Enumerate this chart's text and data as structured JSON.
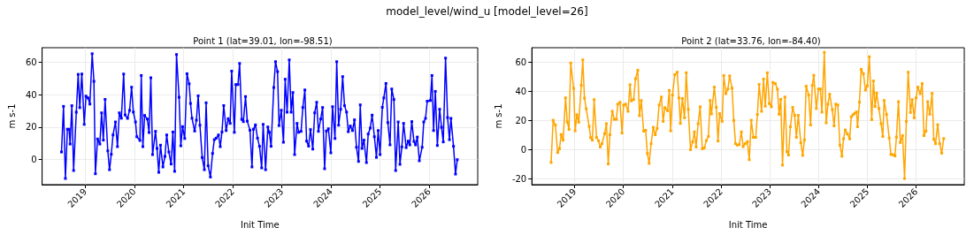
{
  "chart_data": [
    {
      "type": "line",
      "title": "Point 1 (lat=39.01, lon=-98.51)",
      "xlabel": "Init Time",
      "ylabel": "m s-1",
      "annotations": [
        "model_level/wind_u [model_level=26]"
      ],
      "marker": "square",
      "grid": true,
      "xlim": [
        "2018-02-15",
        "2026-12-28"
      ],
      "xticks": [
        "2019",
        "2020",
        "2021",
        "2022",
        "2023",
        "2024",
        "2025",
        "2026"
      ],
      "ylim": [
        -15.4,
        68.9
      ],
      "yticks": [
        0,
        20,
        40,
        60
      ],
      "series": [
        {
          "color": "#0000ff",
          "x": [
            "2018-07-09",
            "2018-07-24",
            "2018-08-07",
            "2018-08-22",
            "2018-09-03",
            "2018-09-11",
            "2018-09-24",
            "2018-10-07",
            "2018-10-27",
            "2018-11-10",
            "2018-11-22",
            "2018-12-07",
            "2018-12-25",
            "2019-01-07",
            "2019-01-22",
            "2019-02-05",
            "2019-02-22",
            "2019-03-07",
            "2019-03-18",
            "2019-04-03",
            "2019-04-20",
            "2019-05-03",
            "2019-05-16",
            "2019-05-29",
            "2019-06-18",
            "2019-07-01",
            "2019-07-14",
            "2019-07-27",
            "2019-08-14",
            "2019-08-29",
            "2019-09-12",
            "2019-09-27",
            "2019-10-14",
            "2019-10-25",
            "2019-11-12",
            "2019-11-27",
            "2019-12-12",
            "2019-12-25",
            "2020-01-10",
            "2020-01-20",
            "2020-02-12",
            "2020-02-22",
            "2020-03-05",
            "2020-03-18",
            "2020-04-07",
            "2020-04-20",
            "2020-05-03",
            "2020-05-16",
            "2020-06-07",
            "2020-06-18",
            "2020-07-01",
            "2020-07-14",
            "2020-08-01",
            "2020-08-16",
            "2020-08-29",
            "2020-09-14",
            "2020-10-01",
            "2020-10-14",
            "2020-10-27",
            "2020-11-10",
            "2020-11-29",
            "2020-12-12",
            "2020-12-25",
            "2021-01-10",
            "2021-01-27",
            "2021-02-12",
            "2021-02-22",
            "2021-03-05",
            "2021-03-25",
            "2021-04-07",
            "2021-04-20",
            "2021-05-03",
            "2021-05-20",
            "2021-06-05",
            "2021-06-18",
            "2021-07-03",
            "2021-07-20",
            "2021-08-05",
            "2021-08-18",
            "2021-09-01",
            "2021-09-18",
            "2021-10-01",
            "2021-10-14",
            "2021-10-27",
            "2021-11-14",
            "2021-11-29",
            "2021-12-14",
            "2021-12-25",
            "2022-01-14",
            "2022-01-25",
            "2022-02-10",
            "2022-02-22",
            "2022-03-10",
            "2022-03-22",
            "2022-04-07",
            "2022-04-20",
            "2022-05-10",
            "2022-05-25",
            "2022-06-05",
            "2022-06-20",
            "2022-07-05",
            "2022-07-20",
            "2022-08-05",
            "2022-08-16",
            "2022-09-03",
            "2022-09-20",
            "2022-10-01",
            "2022-10-14",
            "2022-11-03",
            "2022-11-16",
            "2022-12-01",
            "2022-12-12",
            "2022-12-29",
            "2023-01-14",
            "2023-01-27",
            "2023-02-10",
            "2023-02-26",
            "2023-03-12",
            "2023-03-25",
            "2023-04-07",
            "2023-04-25",
            "2023-05-07",
            "2023-05-25",
            "2023-06-07",
            "2023-06-22",
            "2023-07-05",
            "2023-07-20",
            "2023-08-03",
            "2023-08-20",
            "2023-09-03",
            "2023-09-18",
            "2023-10-01",
            "2023-10-18",
            "2023-11-01",
            "2023-11-16",
            "2023-11-29",
            "2023-12-14",
            "2024-01-01",
            "2024-01-14",
            "2024-02-01",
            "2024-02-14",
            "2024-02-28",
            "2024-03-14",
            "2024-03-29",
            "2024-04-12",
            "2024-04-27",
            "2024-05-10",
            "2024-05-25",
            "2024-06-10",
            "2024-06-25",
            "2024-07-10",
            "2024-07-25",
            "2024-08-07",
            "2024-08-20",
            "2024-09-03",
            "2024-09-22",
            "2024-10-05",
            "2024-10-20",
            "2024-11-03",
            "2024-11-20",
            "2024-12-05",
            "2024-12-18",
            "2025-01-01",
            "2025-01-18",
            "2025-01-29",
            "2025-02-14",
            "2025-02-28",
            "2025-03-16",
            "2025-03-29",
            "2025-04-14",
            "2025-04-27",
            "2025-05-16",
            "2025-05-29",
            "2025-06-12",
            "2025-06-25",
            "2025-07-14",
            "2025-07-29",
            "2025-08-10",
            "2025-08-25",
            "2025-09-10",
            "2025-09-22",
            "2025-10-05",
            "2025-10-20",
            "2025-11-10",
            "2025-11-22",
            "2025-12-05",
            "2025-12-18",
            "2026-01-10",
            "2026-01-22",
            "2026-02-03",
            "2026-02-16",
            "2026-03-03",
            "2026-03-20",
            "2026-04-03",
            "2026-04-16",
            "2026-05-03",
            "2026-05-18",
            "2026-06-01",
            "2026-06-12",
            "2026-07-01",
            "2026-07-16",
            "2026-07-29"
          ],
          "values": [
            4.7,
            32.8,
            -11.6,
            18.7,
            18.7,
            9.6,
            33.2,
            -6.7,
            29.2,
            52.5,
            32,
            52.7,
            21.7,
            39.1,
            38,
            34.2,
            65.2,
            48.2,
            -8.7,
            12.7,
            9.6,
            28.8,
            12,
            37.1,
            5.4,
            -6.2,
            3.3,
            15.2,
            23.2,
            8,
            28.8,
            25.5,
            52.7,
            27.5,
            25.4,
            30.3,
            44.6,
            29.3,
            23.2,
            14.1,
            11.8,
            51.8,
            8,
            27.2,
            25,
            16.7,
            50.4,
            3.1,
            17.4,
            6.9,
            -7.8,
            8.9,
            -4.5,
            2,
            15.2,
            4.7,
            -2.7,
            17,
            -7.2,
            64.7,
            38.4,
            8.5,
            20.3,
            13,
            52.9,
            46.7,
            34.6,
            25.5,
            17.6,
            24.3,
            39.3,
            21.2,
            1.3,
            -6.2,
            35,
            -3.8,
            -10.7,
            3.8,
            12.3,
            13.2,
            15.2,
            8,
            17,
            33.3,
            17.9,
            25.2,
            22.3,
            54.5,
            16.8,
            46.2,
            46.2,
            59.2,
            24.8,
            23.4,
            38.8,
            23.7,
            18.1,
            -4.5,
            18.7,
            21.4,
            13.2,
            8.2,
            -5.1,
            21.7,
            -6.2,
            20.1,
            16.8,
            8.2,
            44.4,
            60.3,
            54.2,
            21,
            30.4,
            10.7,
            49.5,
            29.2,
            61.4,
            29.2,
            41.3,
            3.1,
            22.3,
            16.8,
            17.4,
            32.1,
            42.9,
            11.4,
            8.3,
            18.5,
            6.5,
            28.8,
            35.3,
            17.4,
            25,
            32.1,
            -5.6,
            17.6,
            19,
            4.2,
            32.6,
            13,
            60.3,
            21.2,
            31,
            51.1,
            33.2,
            29.3,
            17.2,
            20.7,
            17.9,
            24.5,
            7.6,
            -1.1,
            33.7,
            6.9,
            12,
            -1.8,
            15.8,
            19.4,
            27.4,
            14.1,
            1.4,
            17.9,
            3.1,
            32.2,
            38,
            46.9,
            22.8,
            9.1,
            43.5,
            37,
            -6.7,
            23.2,
            -2.9,
            7.8,
            22.3,
            7.4,
            11.4,
            9.1,
            23.4,
            11.2,
            9.1,
            13.9,
            -0.7,
            7.6,
            23.2,
            25.4,
            36,
            36.4,
            51.8,
            17.9,
            42,
            8.7,
            31,
            19.9,
            10.9,
            62.5,
            25.9,
            12.3,
            25.4,
            8.2,
            -8.9,
            0
          ]
        }
      ]
    },
    {
      "type": "line",
      "title": "Point 2 (lat=33.76, lon=-84.40)",
      "xlabel": "Init Time",
      "ylabel": "m s-1",
      "marker": "square",
      "grid": true,
      "xlim": [
        "2018-02-15",
        "2026-12-28"
      ],
      "xticks": [
        "2019",
        "2020",
        "2021",
        "2022",
        "2023",
        "2024",
        "2025",
        "2026"
      ],
      "ylim": [
        -23.8,
        70.1
      ],
      "yticks": [
        -20,
        0,
        20,
        40,
        60
      ],
      "series": [
        {
          "color": "#ffa500",
          "x": [
            "2018-07-09",
            "2018-07-24",
            "2018-08-10",
            "2018-08-27",
            "2018-09-10",
            "2018-09-22",
            "2018-10-07",
            "2018-10-25",
            "2018-11-07",
            "2018-11-20",
            "2018-12-03",
            "2018-12-25",
            "2019-01-05",
            "2019-01-18",
            "2019-02-01",
            "2019-02-20",
            "2019-03-03",
            "2019-03-16",
            "2019-03-29",
            "2019-04-20",
            "2019-05-01",
            "2019-05-14",
            "2019-05-27",
            "2019-06-14",
            "2019-06-29",
            "2019-07-12",
            "2019-07-25",
            "2019-08-14",
            "2019-08-27",
            "2019-09-10",
            "2019-09-22",
            "2019-10-10",
            "2019-10-25",
            "2019-11-10",
            "2019-11-20",
            "2019-12-07",
            "2019-12-22",
            "2020-01-03",
            "2020-01-18",
            "2020-02-05",
            "2020-02-20",
            "2020-03-01",
            "2020-03-18",
            "2020-04-01",
            "2020-04-18",
            "2020-05-01",
            "2020-05-14",
            "2020-06-01",
            "2020-06-16",
            "2020-06-29",
            "2020-07-12",
            "2020-07-27",
            "2020-08-12",
            "2020-08-27",
            "2020-09-10",
            "2020-09-25",
            "2020-10-12",
            "2020-10-25",
            "2020-11-07",
            "2020-11-27",
            "2020-12-10",
            "2020-12-20",
            "2021-01-03",
            "2021-01-20",
            "2021-02-07",
            "2021-02-20",
            "2021-03-03",
            "2021-03-18",
            "2021-04-03",
            "2021-04-16",
            "2021-05-01",
            "2021-05-18",
            "2021-06-03",
            "2021-06-16",
            "2021-06-29",
            "2021-07-14",
            "2021-07-29",
            "2021-08-14",
            "2021-08-29",
            "2021-09-14",
            "2021-09-29",
            "2021-10-12",
            "2021-10-22",
            "2021-11-12",
            "2021-11-27",
            "2021-12-10",
            "2021-12-22",
            "2022-01-10",
            "2022-01-22",
            "2022-02-07",
            "2022-02-22",
            "2022-03-07",
            "2022-03-25",
            "2022-04-07",
            "2022-04-20",
            "2022-05-03",
            "2022-05-18",
            "2022-06-03",
            "2022-06-16",
            "2022-07-01",
            "2022-07-18",
            "2022-08-01",
            "2022-08-16",
            "2022-09-01",
            "2022-09-18",
            "2022-10-01",
            "2022-10-14",
            "2022-11-01",
            "2022-11-16",
            "2022-11-29",
            "2022-12-14",
            "2022-12-29",
            "2023-01-14",
            "2023-01-25",
            "2023-02-12",
            "2023-02-28",
            "2023-03-12",
            "2023-03-25",
            "2023-04-07",
            "2023-04-25",
            "2023-05-10",
            "2023-05-22",
            "2023-06-05",
            "2023-06-22",
            "2023-07-07",
            "2023-07-20",
            "2023-08-03",
            "2023-08-22",
            "2023-09-05",
            "2023-09-18",
            "2023-10-01",
            "2023-10-20",
            "2023-11-03",
            "2023-11-16",
            "2023-11-27",
            "2023-12-16",
            "2024-01-01",
            "2024-01-16",
            "2024-01-27",
            "2024-02-14",
            "2024-02-28",
            "2024-03-12",
            "2024-03-25",
            "2024-04-14",
            "2024-04-27",
            "2024-05-10",
            "2024-05-25",
            "2024-06-10",
            "2024-06-25",
            "2024-07-07",
            "2024-07-20",
            "2024-08-05",
            "2024-08-22",
            "2024-09-03",
            "2024-09-16",
            "2024-09-29",
            "2024-10-12",
            "2024-10-20",
            "2024-11-03",
            "2024-11-16",
            "2024-12-03",
            "2024-12-18",
            "2025-01-01",
            "2025-01-16",
            "2025-02-03",
            "2025-02-16",
            "2025-02-28",
            "2025-03-12",
            "2025-03-29",
            "2025-04-14",
            "2025-04-27",
            "2025-05-07",
            "2025-05-25",
            "2025-06-14",
            "2025-06-27",
            "2025-07-12",
            "2025-07-27",
            "2025-08-07",
            "2025-08-22",
            "2025-09-05",
            "2025-09-22",
            "2025-10-07",
            "2025-10-20",
            "2025-11-03",
            "2025-11-20",
            "2025-12-03",
            "2025-12-18",
            "2026-01-01",
            "2026-01-14",
            "2026-02-01",
            "2026-02-16",
            "2026-03-01",
            "2026-03-16",
            "2026-03-29",
            "2026-04-14",
            "2026-05-01",
            "2026-05-14",
            "2026-05-27",
            "2026-06-12",
            "2026-06-27",
            "2026-07-12",
            "2026-07-27"
          ],
          "values": [
            -8.6,
            20.4,
            17.1,
            -1.8,
            0.8,
            10.6,
            6.7,
            35.7,
            19.2,
            14.1,
            59.6,
            42.2,
            13.1,
            24.1,
            19,
            44.3,
            61.8,
            35.5,
            28.2,
            16.1,
            8.4,
            6.7,
            34.5,
            8.6,
            6.3,
            2,
            4.3,
            11.2,
            18,
            -9.6,
            10.4,
            26.5,
            21,
            21,
            31.4,
            32.7,
            11.6,
            30.8,
            31.4,
            26.5,
            44.7,
            33.7,
            34.5,
            48.8,
            54.7,
            23.5,
            33.9,
            12.9,
            13.5,
            -2.4,
            -9.2,
            4.3,
            15.5,
            10.4,
            14.7,
            30.8,
            36.3,
            19.6,
            29,
            26.9,
            40.8,
            13.1,
            37.6,
            51.6,
            53.3,
            35.7,
            18.2,
            35.3,
            22,
            52.9,
            27.8,
            0.2,
            5.5,
            12.4,
            2,
            18,
            29.6,
            0.8,
            1.4,
            6.5,
            9.2,
            33.9,
            24.7,
            43.1,
            29.2,
            6.1,
            24.9,
            19.6,
            51,
            38.6,
            41.8,
            50.8,
            42.4,
            20.2,
            4.3,
            3.3,
            3.7,
            12.4,
            2.2,
            4.3,
            5.7,
            -6.7,
            20.4,
            8.6,
            8.6,
            24.3,
            44.9,
            26.5,
            48.6,
            30,
            52.9,
            31.8,
            29.6,
            46.3,
            45.5,
            41.6,
            24.5,
            34.7,
            -10.4,
            36.3,
            -1.2,
            -3.5,
            15.9,
            29.2,
            23.7,
            8.6,
            23.7,
            4.9,
            -3.7,
            6.9,
            43.7,
            37.6,
            17.1,
            44.3,
            51.2,
            28.4,
            41.8,
            41.8,
            25.9,
            66.9,
            18.6,
            31.4,
            38.2,
            27.6,
            16.5,
            31.4,
            30.8,
            3.3,
            -4.3,
            7.6,
            13.7,
            11,
            7.6,
            22.7,
            24.1,
            25.1,
            26.1,
            15.9,
            32.7,
            55.3,
            52.2,
            41,
            43.9,
            63.9,
            20.8,
            47.3,
            29.8,
            39,
            28.4,
            18,
            9.2,
            33.9,
            24.3,
            8.2,
            -3.1,
            -3.3,
            -4.1,
            8.8,
            33.1,
            5.1,
            9.8,
            -19.6,
            19.6,
            53.3,
            25.7,
            34.5,
            22,
            35.7,
            43.1,
            38.6,
            45.5,
            9.8,
            12.9,
            33.1,
            24.5,
            38.8,
            7.3,
            4.3,
            17.3,
            4.3,
            -2.2,
            7.8
          ]
        }
      ]
    }
  ]
}
